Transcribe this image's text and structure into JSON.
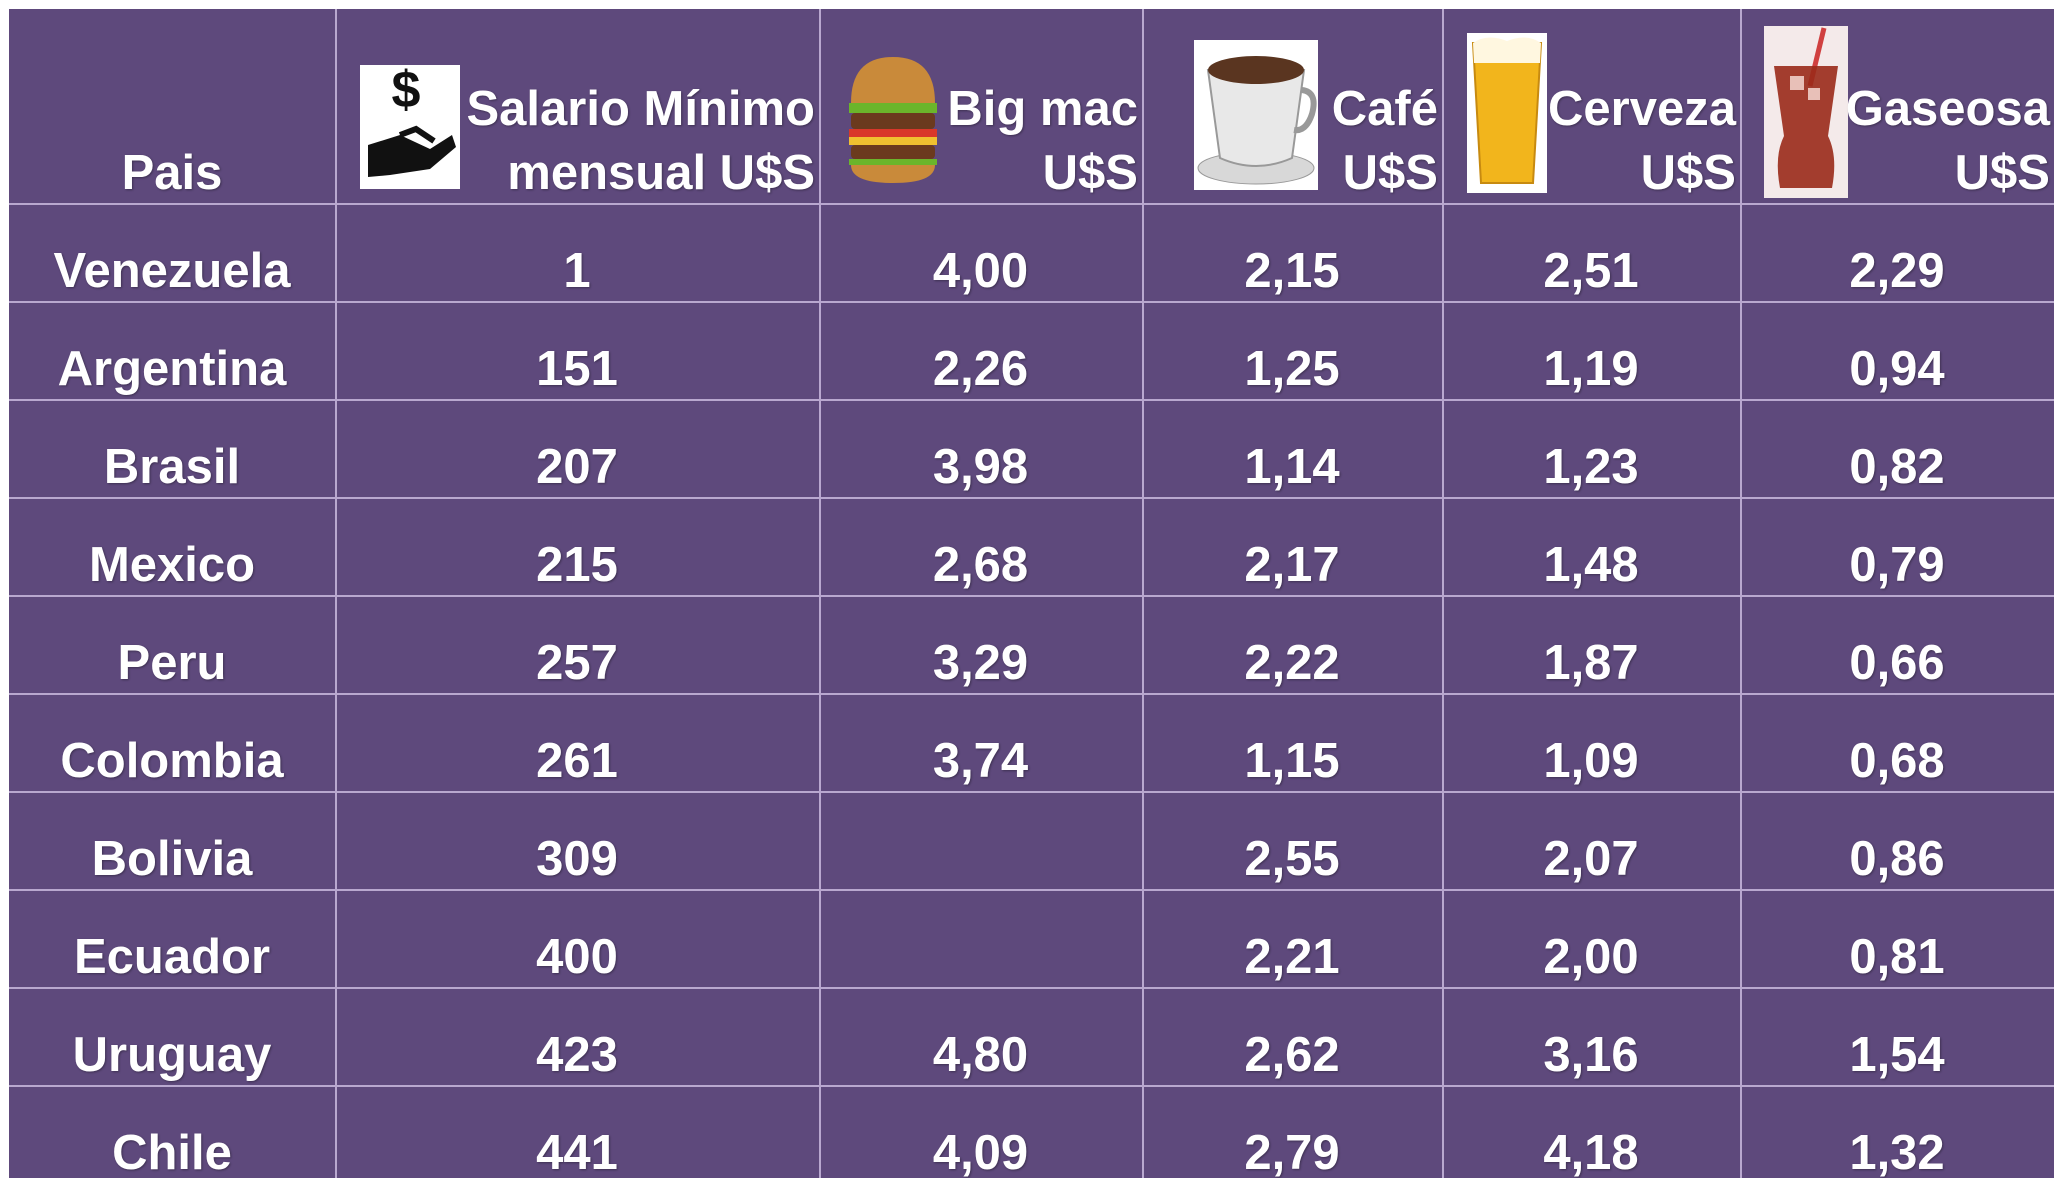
{
  "table": {
    "columns": [
      [
        "Pais"
      ],
      [
        "Salario Mínimo",
        "mensual U$S"
      ],
      [
        "Big mac",
        "U$S"
      ],
      [
        "Café",
        "U$S"
      ],
      [
        "Cerveza",
        "U$S"
      ],
      [
        "Gaseosa",
        "U$S"
      ]
    ],
    "rows": [
      [
        "Venezuela",
        "1",
        "4,00",
        "2,15",
        "2,51",
        "2,29"
      ],
      [
        "Argentina",
        "151",
        "2,26",
        "1,25",
        "1,19",
        "0,94"
      ],
      [
        "Brasil",
        "207",
        "3,98",
        "1,14",
        "1,23",
        "0,82"
      ],
      [
        "Mexico",
        "215",
        "2,68",
        "2,17",
        "1,48",
        "0,79"
      ],
      [
        "Peru",
        "257",
        "3,29",
        "2,22",
        "1,87",
        "0,66"
      ],
      [
        "Colombia",
        "261",
        "3,74",
        "1,15",
        "1,09",
        "0,68"
      ],
      [
        "Bolivia",
        "309",
        null,
        "2,55",
        "2,07",
        "0,86"
      ],
      [
        "Ecuador",
        "400",
        null,
        "2,21",
        "2,00",
        "0,81"
      ],
      [
        "Uruguay",
        "423",
        "4,80",
        "2,62",
        "3,16",
        "1,54"
      ],
      [
        "Chile",
        "441",
        "4,09",
        "2,79",
        "4,18",
        "1,32"
      ]
    ]
  }
}
